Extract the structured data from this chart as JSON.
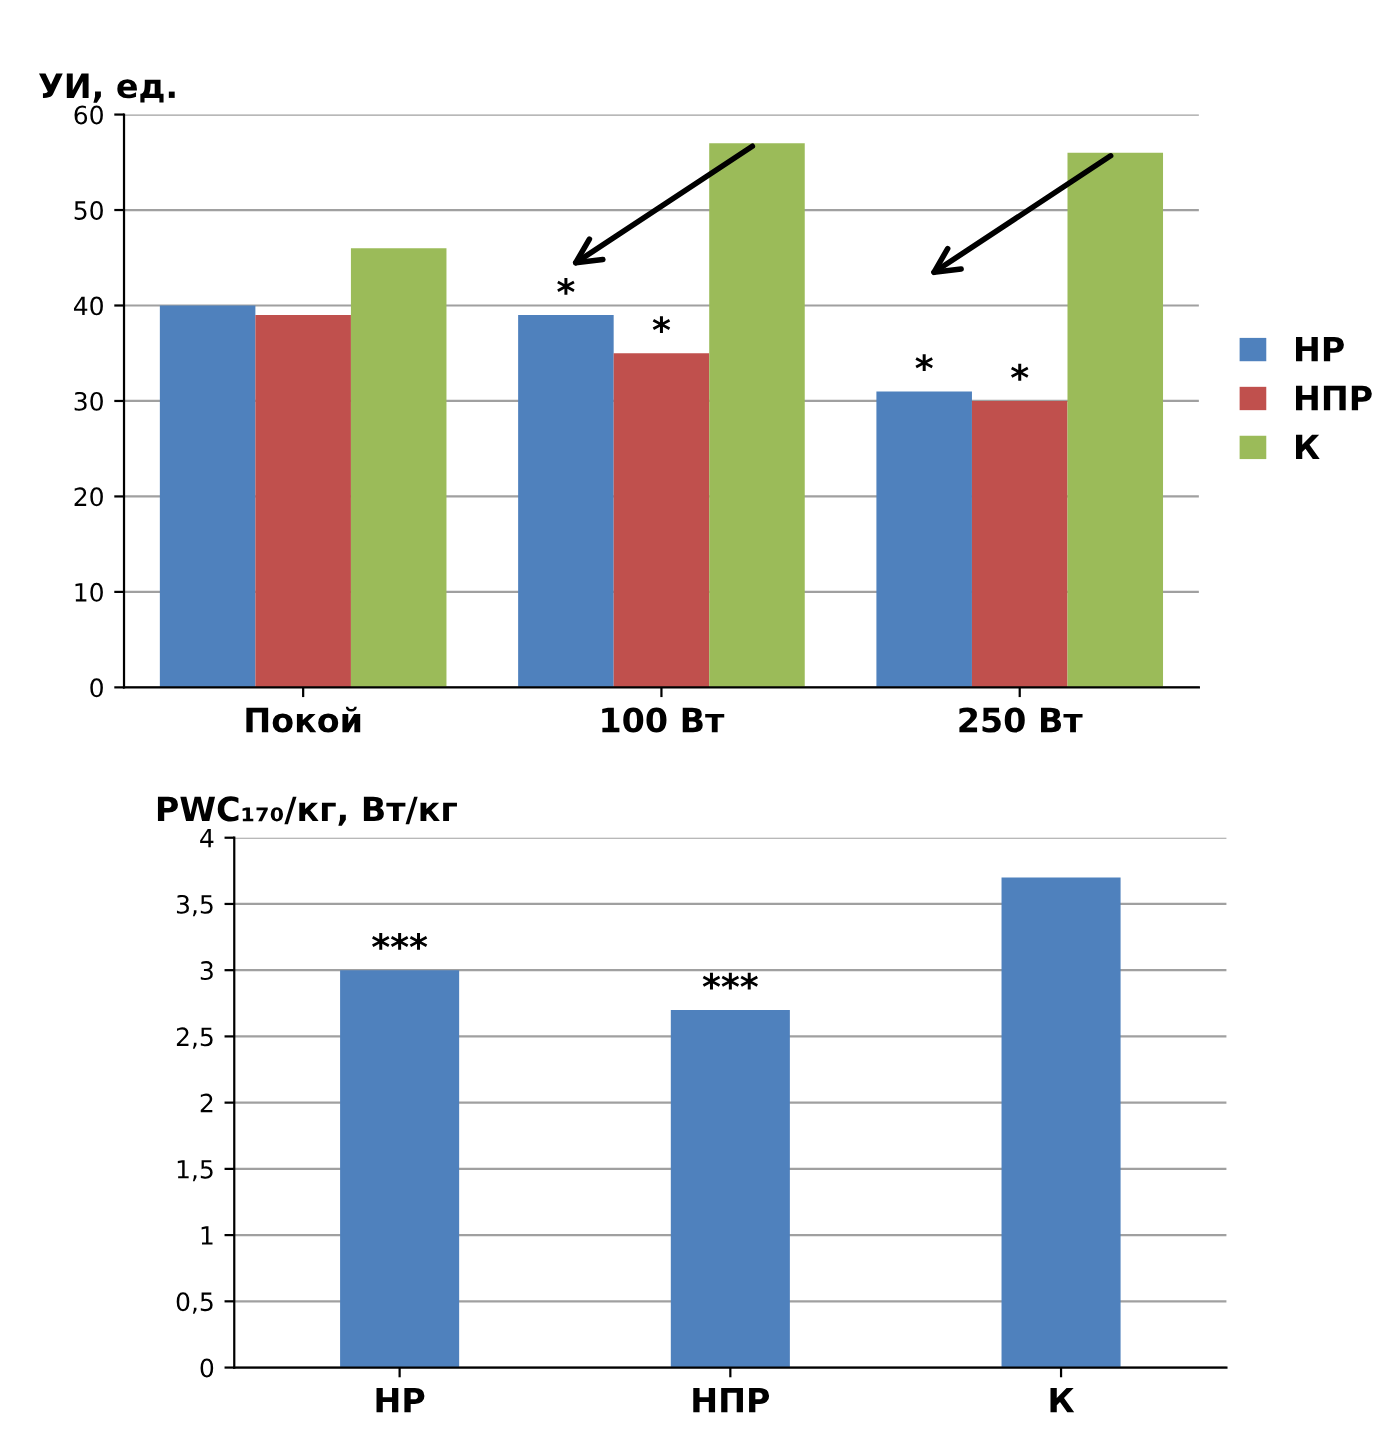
{
  "chart_data": [
    {
      "type": "bar",
      "ylabel": "УИ, ед.",
      "categories": [
        "Покой",
        "100 Вт",
        "250 Вт"
      ],
      "series": [
        {
          "name": "НР",
          "color": "#4f81bd",
          "values": [
            40,
            39,
            31
          ],
          "value_labels": [
            null,
            "*",
            "*"
          ]
        },
        {
          "name": "НПР",
          "color": "#c0504d",
          "values": [
            39,
            35,
            30
          ],
          "value_labels": [
            null,
            "*",
            "*"
          ]
        },
        {
          "name": "К",
          "color": "#9bbb59",
          "values": [
            46,
            57,
            56
          ]
        }
      ],
      "ylim": [
        0,
        60
      ],
      "yticks": [
        0,
        10,
        20,
        30,
        40,
        50,
        60
      ],
      "grid": "y",
      "legend": "right"
    },
    {
      "type": "bar",
      "ylabel": "PWC₁₇₀/кг, Вт/кг",
      "categories": [
        "НР",
        "НПР",
        "К"
      ],
      "series": [
        {
          "color": "#4f81bd",
          "values": [
            3.0,
            2.7,
            3.7
          ],
          "value_labels": [
            "***",
            "***",
            null
          ]
        }
      ],
      "ylim": [
        0,
        4
      ],
      "yticks": [
        0,
        {
          "value": 0.5,
          "label": "0,5"
        },
        1,
        {
          "value": 1.5,
          "label": "1,5"
        },
        2,
        {
          "value": 2.5,
          "label": "2,5"
        },
        3,
        {
          "value": 3.5,
          "label": "3,5"
        },
        4
      ],
      "grid": "y"
    }
  ]
}
